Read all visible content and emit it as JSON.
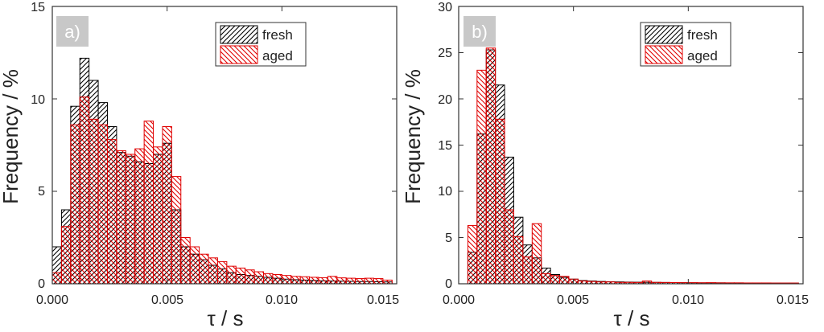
{
  "colors": {
    "fresh": "#000000",
    "aged": "#e00000",
    "panel_label_bg": "#c8c8c8",
    "frame": "#333333"
  },
  "chart_data": [
    {
      "type": "bar",
      "panel_label": "a)",
      "xlabel": "τ / s",
      "ylabel": "Frequency / %",
      "xlim": [
        0,
        0.015
      ],
      "ylim": [
        0,
        15
      ],
      "xticks": [
        "0.000",
        "0.005",
        "0.010",
        "0.015"
      ],
      "yticks": [
        "0",
        "5",
        "10",
        "15"
      ],
      "bin_width": 0.0004,
      "x": [
        0.0002,
        0.0006,
        0.001,
        0.0014,
        0.0018,
        0.0022,
        0.0026,
        0.003,
        0.0034,
        0.0038,
        0.0042,
        0.0046,
        0.005,
        0.0054,
        0.0058,
        0.0062,
        0.0066,
        0.007,
        0.0074,
        0.0078,
        0.0082,
        0.0086,
        0.009,
        0.0094,
        0.0098,
        0.0102,
        0.0106,
        0.011,
        0.0114,
        0.0118,
        0.0122,
        0.0126,
        0.013,
        0.0134,
        0.0138,
        0.0142,
        0.0146
      ],
      "series": [
        {
          "name": "fresh",
          "values": [
            2.0,
            4.0,
            9.6,
            12.2,
            11.0,
            9.8,
            8.5,
            7.1,
            6.9,
            6.6,
            6.5,
            7.0,
            7.6,
            4.0,
            2.0,
            1.6,
            1.3,
            1.0,
            0.8,
            0.6,
            0.5,
            0.45,
            0.4,
            0.35,
            0.3,
            0.25,
            0.22,
            0.2,
            0.18,
            0.16,
            0.15,
            0.14,
            0.13,
            0.12,
            0.12,
            0.11,
            0.1
          ]
        },
        {
          "name": "aged",
          "values": [
            0.6,
            3.1,
            8.6,
            10.1,
            8.9,
            8.6,
            7.8,
            7.2,
            7.0,
            7.3,
            8.8,
            7.4,
            8.5,
            5.8,
            2.5,
            2.0,
            1.6,
            1.4,
            1.2,
            0.95,
            0.85,
            0.75,
            0.65,
            0.55,
            0.5,
            0.45,
            0.4,
            0.38,
            0.35,
            0.33,
            0.4,
            0.32,
            0.3,
            0.28,
            0.3,
            0.28,
            0.2
          ]
        }
      ],
      "legend": [
        "fresh",
        "aged"
      ],
      "legend_position": "top-right"
    },
    {
      "type": "bar",
      "panel_label": "b)",
      "xlabel": "τ / s",
      "ylabel": "Frequency / %",
      "xlim": [
        0,
        0.015
      ],
      "ylim": [
        0,
        30
      ],
      "xticks": [
        "0.000",
        "0.005",
        "0.010",
        "0.015"
      ],
      "yticks": [
        "0",
        "5",
        "10",
        "15",
        "20",
        "25",
        "30"
      ],
      "bin_width": 0.0004,
      "x": [
        0.0002,
        0.0006,
        0.001,
        0.0014,
        0.0018,
        0.0022,
        0.0026,
        0.003,
        0.0034,
        0.0038,
        0.0042,
        0.0046,
        0.005,
        0.0054,
        0.0058,
        0.0062,
        0.0066,
        0.007,
        0.0074,
        0.0078,
        0.0082,
        0.0086,
        0.009,
        0.0094,
        0.0098,
        0.0102,
        0.0106,
        0.011,
        0.0114,
        0.0118,
        0.0122,
        0.0126,
        0.013,
        0.0134,
        0.0138,
        0.0142,
        0.0146
      ],
      "series": [
        {
          "name": "fresh",
          "values": [
            0,
            3.4,
            16.2,
            25.3,
            21.5,
            13.7,
            7.2,
            4.2,
            2.8,
            1.7,
            1.0,
            0.7,
            0.5,
            0.35,
            0.3,
            0.25,
            0.22,
            0.2,
            0.18,
            0.17,
            0.16,
            0.15,
            0.14,
            0.13,
            0.12,
            0.11,
            0.1,
            0.1,
            0.1,
            0.09,
            0.09,
            0.08,
            0.08,
            0.08,
            0.07,
            0.07,
            0.07
          ]
        },
        {
          "name": "aged",
          "values": [
            0,
            6.3,
            23.1,
            25.5,
            17.8,
            8.0,
            5.1,
            2.9,
            6.5,
            1.1,
            0.9,
            0.8,
            0.5,
            0.3,
            0.25,
            0.2,
            0.2,
            0.15,
            0.15,
            0.14,
            0.3,
            0.15,
            0.14,
            0.13,
            0.12,
            0.12,
            0.11,
            0.12,
            0.1,
            0.1,
            0.1,
            0.09,
            0.09,
            0.09,
            0.08,
            0.08,
            0.08
          ]
        }
      ],
      "legend": [
        "fresh",
        "aged"
      ],
      "legend_position": "top-right"
    }
  ]
}
